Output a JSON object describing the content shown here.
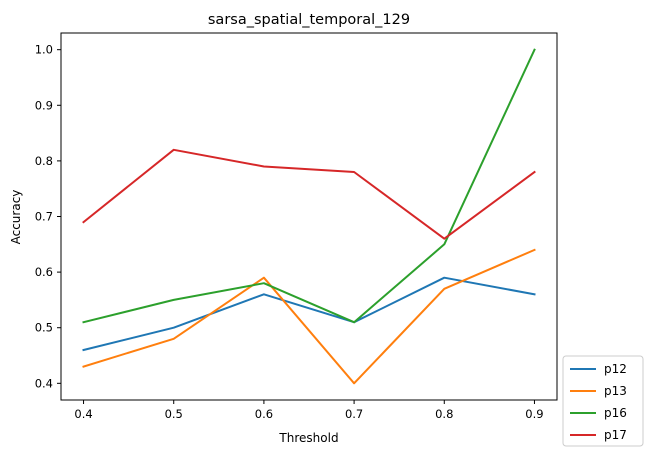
{
  "chart_data": {
    "type": "line",
    "title": "sarsa_spatial_temporal_129",
    "xlabel": "Threshold",
    "ylabel": "Accuracy",
    "x": [
      0.4,
      0.5,
      0.6,
      0.7,
      0.8,
      0.9
    ],
    "xticks": [
      "0.4",
      "0.5",
      "0.6",
      "0.7",
      "0.8",
      "0.9"
    ],
    "yticks": [
      "0.4",
      "0.5",
      "0.6",
      "0.7",
      "0.8",
      "0.9",
      "1.0"
    ],
    "xlim": [
      0.375,
      0.925
    ],
    "ylim": [
      0.37,
      1.03
    ],
    "grid": false,
    "legend_position": "outside-bottom-right",
    "series": [
      {
        "name": "p12",
        "color": "#1f77b4",
        "values": [
          0.46,
          0.5,
          0.56,
          0.51,
          0.59,
          0.56
        ]
      },
      {
        "name": "p13",
        "color": "#ff7f0e",
        "values": [
          0.43,
          0.48,
          0.59,
          0.4,
          0.57,
          0.64
        ]
      },
      {
        "name": "p16",
        "color": "#2ca02c",
        "values": [
          0.51,
          0.55,
          0.58,
          0.51,
          0.65,
          1.0
        ]
      },
      {
        "name": "p17",
        "color": "#d62728",
        "values": [
          0.69,
          0.82,
          0.79,
          0.78,
          0.66,
          0.78
        ]
      }
    ]
  }
}
